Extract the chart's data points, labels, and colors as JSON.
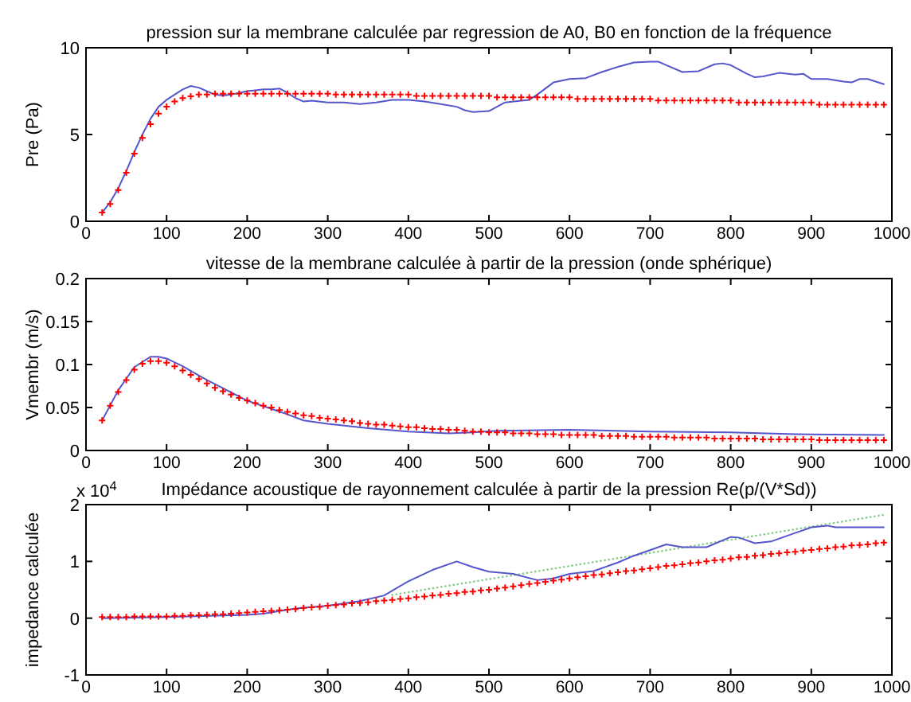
{
  "chart_data": [
    {
      "type": "line",
      "title": "pression sur la membrane calculée par regression de A0, B0 en fonction de la fréquence",
      "ylabel": "Pre (Pa)",
      "xlim": [
        0,
        1000
      ],
      "xticks": [
        0,
        100,
        200,
        300,
        400,
        500,
        600,
        700,
        800,
        900,
        1000
      ],
      "ylim": [
        0,
        10
      ],
      "yticks": [
        0,
        5,
        10
      ],
      "x": [
        20,
        30,
        40,
        50,
        60,
        70,
        80,
        90,
        100,
        110,
        120,
        130,
        140,
        150,
        160,
        170,
        180,
        190,
        200,
        210,
        220,
        230,
        240,
        250,
        260,
        270,
        280,
        290,
        300,
        310,
        320,
        330,
        340,
        350,
        360,
        370,
        380,
        390,
        400,
        410,
        420,
        430,
        440,
        450,
        460,
        470,
        480,
        490,
        500,
        510,
        520,
        530,
        540,
        550,
        560,
        570,
        580,
        590,
        600,
        610,
        620,
        630,
        640,
        650,
        660,
        670,
        680,
        690,
        700,
        710,
        720,
        730,
        740,
        750,
        760,
        770,
        780,
        790,
        800,
        810,
        820,
        830,
        840,
        850,
        860,
        870,
        880,
        890,
        900,
        910,
        920,
        930,
        940,
        950,
        960,
        970,
        980,
        990
      ],
      "series": [
        {
          "color": "#5555cc",
          "line_style": "solid",
          "marker": "none",
          "x": [
            20,
            30,
            40,
            50,
            60,
            70,
            80,
            90,
            100,
            110,
            120,
            130,
            140,
            150,
            160,
            170,
            180,
            190,
            200,
            210,
            220,
            230,
            240,
            250,
            260,
            270,
            280,
            300,
            320,
            340,
            360,
            380,
            400,
            420,
            440,
            460,
            470,
            480,
            500,
            510,
            520,
            540,
            550,
            560,
            580,
            600,
            620,
            640,
            660,
            680,
            700,
            710,
            720,
            740,
            760,
            780,
            790,
            800,
            820,
            830,
            840,
            860,
            880,
            890,
            900,
            920,
            940,
            950,
            960,
            970,
            990
          ],
          "values": [
            0.5,
            1.1,
            1.9,
            2.9,
            4.0,
            5.0,
            5.9,
            6.6,
            7.0,
            7.3,
            7.6,
            7.8,
            7.7,
            7.5,
            7.3,
            7.25,
            7.3,
            7.4,
            7.5,
            7.55,
            7.6,
            7.6,
            7.65,
            7.4,
            7.1,
            6.9,
            6.95,
            6.85,
            6.85,
            6.75,
            6.85,
            7.0,
            7.0,
            6.9,
            6.75,
            6.6,
            6.4,
            6.3,
            6.35,
            6.6,
            6.85,
            6.95,
            7.0,
            7.3,
            8.0,
            8.2,
            8.25,
            8.6,
            8.9,
            9.15,
            9.2,
            9.2,
            9.0,
            8.6,
            8.65,
            9.05,
            9.1,
            9.0,
            8.5,
            8.3,
            8.35,
            8.55,
            8.45,
            8.5,
            8.2,
            8.2,
            8.05,
            8.0,
            8.2,
            8.2,
            7.9
          ]
        },
        {
          "type": "scatter",
          "color": "#ff0000",
          "marker": "cross",
          "values": [
            0.5,
            1.0,
            1.8,
            2.8,
            3.9,
            4.8,
            5.6,
            6.2,
            6.6,
            6.9,
            7.1,
            7.2,
            7.3,
            7.3,
            7.35,
            7.35,
            7.35,
            7.35,
            7.35,
            7.35,
            7.35,
            7.35,
            7.35,
            7.35,
            7.35,
            7.35,
            7.35,
            7.35,
            7.35,
            7.3,
            7.3,
            7.3,
            7.3,
            7.3,
            7.3,
            7.3,
            7.3,
            7.3,
            7.3,
            7.22,
            7.22,
            7.22,
            7.22,
            7.22,
            7.22,
            7.22,
            7.22,
            7.22,
            7.22,
            7.14,
            7.14,
            7.14,
            7.14,
            7.14,
            7.14,
            7.14,
            7.14,
            7.14,
            7.14,
            7.05,
            7.05,
            7.05,
            7.05,
            7.05,
            7.05,
            7.05,
            7.05,
            7.05,
            7.05,
            6.96,
            6.96,
            6.96,
            6.96,
            6.96,
            6.96,
            6.96,
            6.96,
            6.96,
            6.96,
            6.85,
            6.85,
            6.85,
            6.85,
            6.85,
            6.85,
            6.85,
            6.85,
            6.85,
            6.85,
            6.72,
            6.72,
            6.72,
            6.72,
            6.72,
            6.72,
            6.72,
            6.72,
            6.72
          ]
        }
      ]
    },
    {
      "type": "line",
      "title": "vitesse de la membrane calculée à partir de la pression (onde sphérique)",
      "ylabel": "Vmembr (m/s)",
      "xlim": [
        0,
        1000
      ],
      "xticks": [
        0,
        100,
        200,
        300,
        400,
        500,
        600,
        700,
        800,
        900,
        1000
      ],
      "ylim": [
        0,
        0.2
      ],
      "yticks": [
        0,
        0.05,
        0.1,
        0.15,
        0.2
      ],
      "x": [
        20,
        30,
        40,
        50,
        60,
        70,
        80,
        90,
        100,
        110,
        120,
        130,
        140,
        150,
        160,
        170,
        180,
        190,
        200,
        210,
        220,
        230,
        240,
        250,
        260,
        270,
        280,
        290,
        300,
        310,
        320,
        330,
        340,
        350,
        360,
        370,
        380,
        390,
        400,
        410,
        420,
        430,
        440,
        450,
        460,
        470,
        480,
        490,
        500,
        510,
        520,
        530,
        540,
        550,
        560,
        570,
        580,
        590,
        600,
        610,
        620,
        630,
        640,
        650,
        660,
        670,
        680,
        690,
        700,
        710,
        720,
        730,
        740,
        750,
        760,
        770,
        780,
        790,
        800,
        810,
        820,
        830,
        840,
        850,
        860,
        870,
        880,
        890,
        900,
        910,
        920,
        930,
        940,
        950,
        960,
        970,
        980,
        990
      ],
      "series": [
        {
          "color": "#5555cc",
          "line_style": "solid",
          "marker": "none",
          "x": [
            20,
            40,
            60,
            80,
            90,
            100,
            120,
            150,
            200,
            250,
            270,
            300,
            350,
            400,
            450,
            480,
            510,
            600,
            700,
            800,
            880,
            990
          ],
          "values": [
            0.035,
            0.07,
            0.097,
            0.109,
            0.109,
            0.107,
            0.098,
            0.082,
            0.058,
            0.042,
            0.035,
            0.031,
            0.026,
            0.022,
            0.02,
            0.021,
            0.023,
            0.024,
            0.022,
            0.021,
            0.019,
            0.018
          ]
        },
        {
          "type": "scatter",
          "color": "#ff0000",
          "marker": "cross",
          "values": [
            0.035,
            0.052,
            0.068,
            0.082,
            0.094,
            0.101,
            0.104,
            0.104,
            0.102,
            0.098,
            0.093,
            0.088,
            0.083,
            0.078,
            0.073,
            0.069,
            0.065,
            0.061,
            0.058,
            0.055,
            0.052,
            0.05,
            0.047,
            0.045,
            0.043,
            0.041,
            0.04,
            0.038,
            0.037,
            0.036,
            0.035,
            0.034,
            0.032,
            0.031,
            0.03,
            0.03,
            0.029,
            0.028,
            0.027,
            0.027,
            0.026,
            0.025,
            0.025,
            0.024,
            0.024,
            0.023,
            0.022,
            0.022,
            0.021,
            0.021,
            0.021,
            0.02,
            0.02,
            0.02,
            0.019,
            0.019,
            0.019,
            0.018,
            0.018,
            0.018,
            0.018,
            0.018,
            0.017,
            0.017,
            0.017,
            0.017,
            0.016,
            0.016,
            0.016,
            0.016,
            0.016,
            0.015,
            0.015,
            0.015,
            0.015,
            0.015,
            0.014,
            0.014,
            0.014,
            0.014,
            0.014,
            0.014,
            0.013,
            0.013,
            0.013,
            0.013,
            0.013,
            0.013,
            0.013,
            0.012,
            0.012,
            0.012,
            0.012,
            0.012,
            0.012,
            0.012,
            0.012,
            0.012
          ]
        }
      ]
    },
    {
      "type": "line",
      "title": "Impédance acoustique de rayonnement calculée à partir de la pression Re(p/(V*Sd))",
      "ylabel": "impedance calculée",
      "annotations": [
        "x 10$^{4}$"
      ],
      "xlim": [
        0,
        1000
      ],
      "xticks": [
        0,
        100,
        200,
        300,
        400,
        500,
        600,
        700,
        800,
        900,
        1000
      ],
      "ylim": [
        -1,
        2
      ],
      "yticks": [
        -1,
        0,
        1,
        2
      ],
      "x": [
        20,
        30,
        40,
        50,
        60,
        70,
        80,
        90,
        100,
        110,
        120,
        130,
        140,
        150,
        160,
        170,
        180,
        190,
        200,
        210,
        220,
        230,
        240,
        250,
        260,
        270,
        280,
        290,
        300,
        310,
        320,
        330,
        340,
        350,
        360,
        370,
        380,
        390,
        400,
        410,
        420,
        430,
        440,
        450,
        460,
        470,
        480,
        490,
        500,
        510,
        520,
        530,
        540,
        550,
        560,
        570,
        580,
        590,
        600,
        610,
        620,
        630,
        640,
        650,
        660,
        670,
        680,
        690,
        700,
        710,
        720,
        730,
        740,
        750,
        760,
        770,
        780,
        790,
        800,
        810,
        820,
        830,
        840,
        850,
        860,
        870,
        880,
        890,
        900,
        910,
        920,
        930,
        940,
        950,
        960,
        970,
        980,
        990
      ],
      "series": [
        {
          "color": "#88cc88",
          "line_style": "dotted",
          "marker": "none",
          "x": [
            380,
            990
          ],
          "values": [
            0.41,
            1.82
          ]
        },
        {
          "color": "#5555cc",
          "line_style": "solid",
          "marker": "none",
          "x": [
            20,
            100,
            200,
            220,
            260,
            300,
            340,
            370,
            400,
            430,
            460,
            480,
            500,
            530,
            560,
            580,
            600,
            630,
            660,
            680,
            720,
            740,
            770,
            800,
            810,
            830,
            850,
            880,
            900,
            920,
            930,
            990
          ],
          "values": [
            0.0,
            0.02,
            0.06,
            0.08,
            0.17,
            0.22,
            0.3,
            0.4,
            0.65,
            0.85,
            1.0,
            0.9,
            0.82,
            0.78,
            0.67,
            0.7,
            0.78,
            0.83,
            0.98,
            1.1,
            1.3,
            1.25,
            1.25,
            1.43,
            1.42,
            1.32,
            1.35,
            1.5,
            1.6,
            1.63,
            1.6,
            1.6
          ]
        },
        {
          "type": "scatter",
          "color": "#ff0000",
          "marker": "cross",
          "values": [
            0.02,
            0.02,
            0.02,
            0.02,
            0.03,
            0.03,
            0.03,
            0.03,
            0.03,
            0.04,
            0.04,
            0.05,
            0.05,
            0.06,
            0.07,
            0.07,
            0.08,
            0.09,
            0.1,
            0.11,
            0.12,
            0.13,
            0.14,
            0.15,
            0.16,
            0.18,
            0.19,
            0.2,
            0.22,
            0.23,
            0.24,
            0.26,
            0.27,
            0.28,
            0.3,
            0.31,
            0.32,
            0.34,
            0.35,
            0.37,
            0.38,
            0.4,
            0.41,
            0.43,
            0.44,
            0.46,
            0.47,
            0.49,
            0.5,
            0.52,
            0.54,
            0.56,
            0.58,
            0.6,
            0.62,
            0.64,
            0.66,
            0.68,
            0.7,
            0.72,
            0.74,
            0.76,
            0.77,
            0.79,
            0.81,
            0.83,
            0.84,
            0.86,
            0.88,
            0.9,
            0.92,
            0.93,
            0.95,
            0.97,
            0.98,
            1.0,
            1.02,
            1.03,
            1.05,
            1.07,
            1.08,
            1.1,
            1.11,
            1.13,
            1.14,
            1.16,
            1.17,
            1.19,
            1.2,
            1.22,
            1.23,
            1.25,
            1.26,
            1.28,
            1.29,
            1.3,
            1.32,
            1.33
          ]
        }
      ]
    }
  ]
}
